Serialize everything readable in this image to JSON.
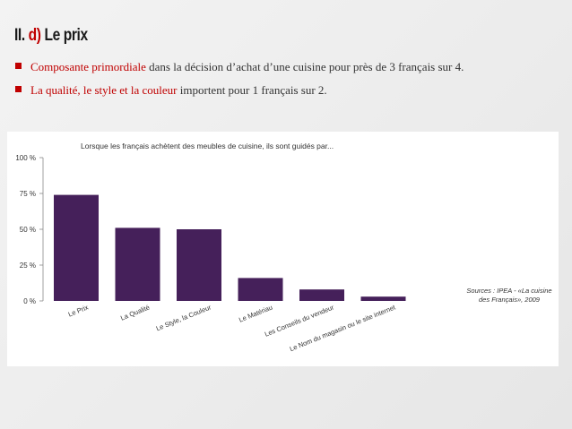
{
  "slide": {
    "title_prefix": "II. ",
    "title_accent": "d)",
    "title_suffix": " Le prix",
    "bullets": [
      {
        "highlight": "Composante primordiale",
        "rest": " dans la décision d’achat d’une cuisine pour près de 3 français sur 4."
      },
      {
        "highlight": "La qualité, le style et la couleur",
        "rest": " importent pour 1 français sur 2."
      }
    ]
  },
  "colors": {
    "bar": "#45205a",
    "accent": "#c00000",
    "axis": "#888888"
  },
  "chart_data": {
    "type": "bar",
    "title": "Lorsque les français achètent des meubles de cuisine, ils sont guidés par...",
    "categories": [
      "Le Prix",
      "La Qualité",
      "Le Style, la Couleur",
      "Le Matériau",
      "Les Conseils du vendeur",
      "Le Nom du magasin ou le site internet"
    ],
    "values": [
      74,
      51,
      50,
      16,
      8,
      3
    ],
    "yticks": [
      "100 %",
      "75 %",
      "50 %",
      "25 %",
      "0 %"
    ],
    "ylim": [
      0,
      100
    ],
    "grid": false,
    "source": [
      "Sources : IPEA - «La cuisine",
      "des Français», 2009"
    ]
  }
}
